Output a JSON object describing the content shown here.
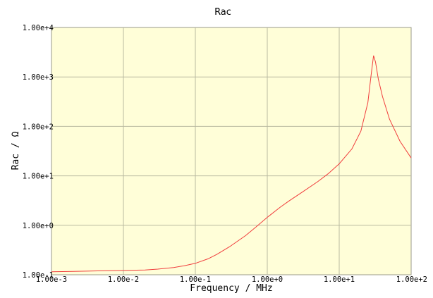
{
  "chart_data": {
    "type": "line",
    "title": "Rac",
    "xlabel": "Frequency / MHz",
    "ylabel": "Rac / Ω",
    "x_scale": "log",
    "y_scale": "log",
    "xlim": [
      0.001,
      100
    ],
    "ylim": [
      0.1,
      10000
    ],
    "grid": true,
    "x_ticks": [
      0.001,
      0.01,
      0.1,
      1,
      10,
      100
    ],
    "x_tick_labels": [
      "1.00e-3",
      "1.00e-2",
      "1.00e-1",
      "1.00e+0",
      "1.00e+1",
      "1.00e+2"
    ],
    "y_ticks": [
      0.1,
      1,
      10,
      100,
      1000,
      10000
    ],
    "y_tick_labels": [
      "1.00e-1",
      "1.00e+0",
      "1.00e+1",
      "1.00e+2",
      "1.00e+3",
      "1.00e+4"
    ],
    "colors": {
      "plot_background": "#fffed8",
      "line": "#f03c3c",
      "grid": "#b9b9a0"
    },
    "series": [
      {
        "x": [
          0.001,
          0.002,
          0.005,
          0.01,
          0.02,
          0.03,
          0.05,
          0.07,
          0.1,
          0.15,
          0.2,
          0.3,
          0.5,
          0.7,
          1,
          1.5,
          2,
          3,
          5,
          7,
          10,
          15,
          20,
          25,
          28,
          30,
          32,
          35,
          40,
          50,
          70,
          100
        ],
        "y": [
          0.115,
          0.117,
          0.12,
          0.122,
          0.125,
          0.13,
          0.14,
          0.152,
          0.17,
          0.21,
          0.26,
          0.37,
          0.62,
          0.93,
          1.45,
          2.3,
          3.1,
          4.6,
          7.6,
          11,
          17.5,
          35,
          80,
          300,
          1200,
          2700,
          2000,
          900,
          400,
          140,
          50,
          23
        ]
      }
    ]
  }
}
